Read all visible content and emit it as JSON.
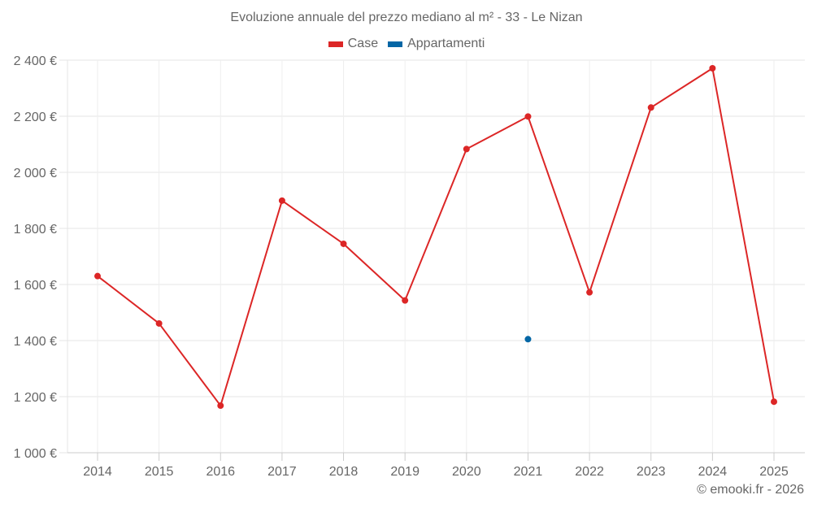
{
  "title": "Evoluzione annuale del prezzo mediano al m² - 33 - Le Nizan",
  "legend": [
    {
      "label": "Case",
      "color": "#dc2626"
    },
    {
      "label": "Appartamenti",
      "color": "#0366a5"
    }
  ],
  "credit": "© emooki.fr - 2026",
  "chart_data": {
    "type": "line",
    "title": "Evoluzione annuale del prezzo mediano al m² - 33 - Le Nizan",
    "xlabel": "",
    "ylabel": "",
    "categories": [
      "2014",
      "2015",
      "2016",
      "2017",
      "2018",
      "2019",
      "2020",
      "2021",
      "2022",
      "2023",
      "2024",
      "2025"
    ],
    "series": [
      {
        "name": "Case",
        "color": "#dc2626",
        "values": [
          1630,
          1461,
          1168,
          1899,
          1745,
          1543,
          2083,
          2199,
          1572,
          2231,
          2371,
          1182
        ]
      },
      {
        "name": "Appartamenti",
        "color": "#0366a5",
        "values": [
          null,
          null,
          null,
          null,
          null,
          null,
          null,
          1405,
          null,
          null,
          null,
          null
        ]
      }
    ],
    "yticks": [
      "1 000 €",
      "1 200 €",
      "1 400 €",
      "1 600 €",
      "1 800 €",
      "2 000 €",
      "2 200 €",
      "2 400 €"
    ],
    "ylim": [
      1000,
      2400
    ],
    "grid": true,
    "legend_position": "top"
  }
}
